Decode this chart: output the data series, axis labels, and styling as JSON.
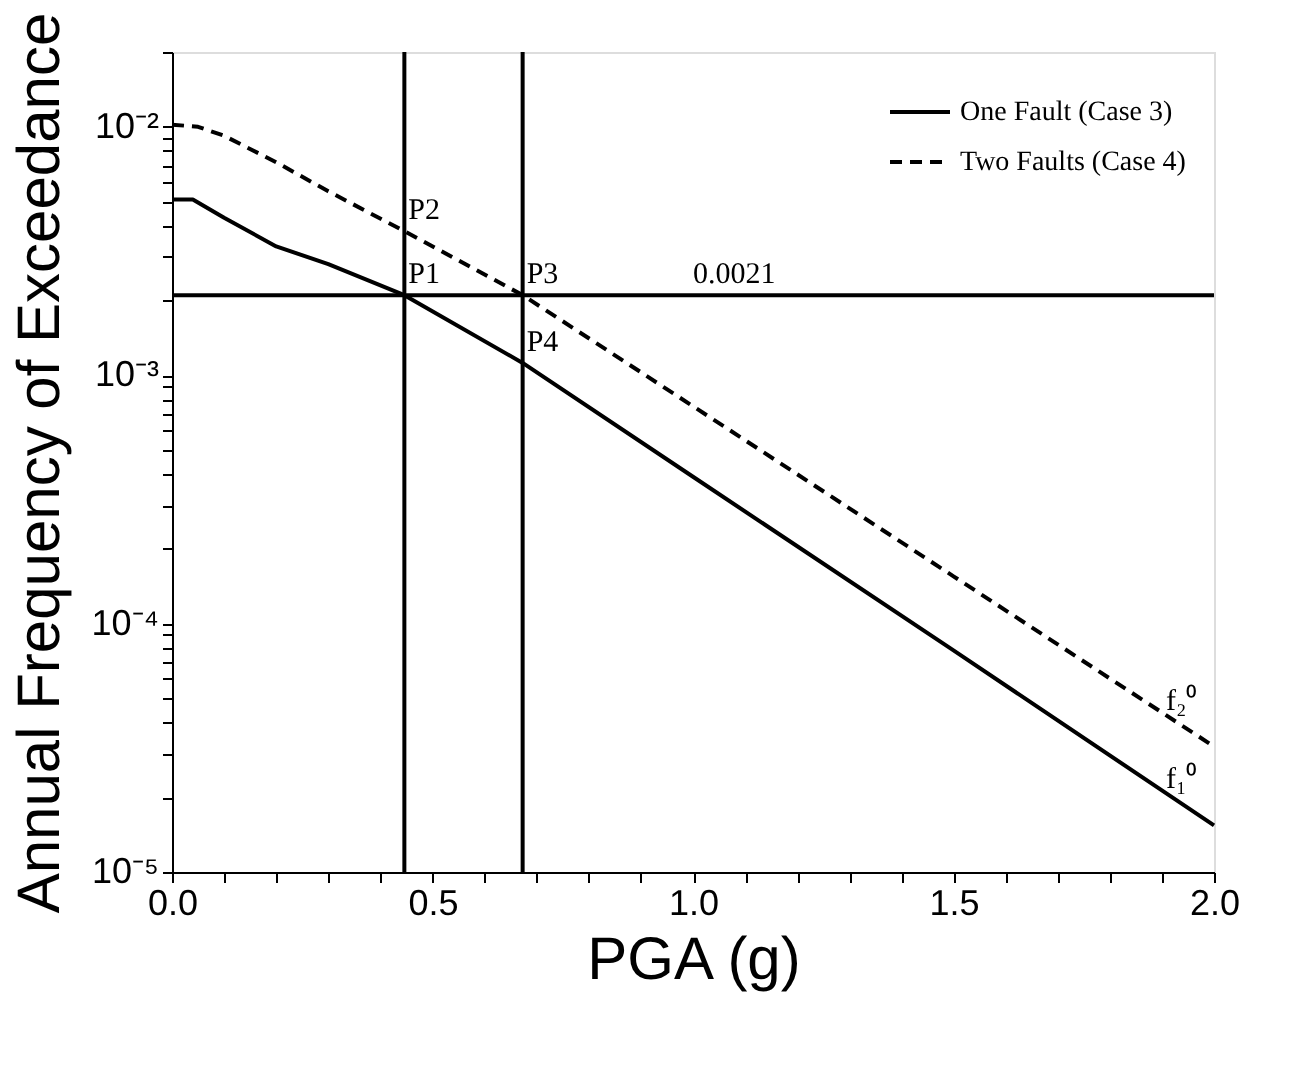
{
  "chart_data": {
    "type": "line",
    "xlabel": "PGA (g)",
    "ylabel": "Annual Frequency of Exceedance",
    "log": "y",
    "grid": false,
    "legend": "top right",
    "marker": "none",
    "xlim": [
      0,
      2
    ],
    "ylim": [
      1e-05,
      0.02
    ],
    "xticks": [
      {
        "value": 0,
        "label": "0.0"
      },
      {
        "value": 0.1,
        "label": null
      },
      {
        "value": 0.2,
        "label": null
      },
      {
        "value": 0.3,
        "label": null
      },
      {
        "value": 0.4,
        "label": null
      },
      {
        "value": 0.5,
        "label": "0.5"
      },
      {
        "value": 0.6,
        "label": null
      },
      {
        "value": 0.7,
        "label": null
      },
      {
        "value": 0.8,
        "label": null
      },
      {
        "value": 0.9,
        "label": null
      },
      {
        "value": 1,
        "label": "1.0"
      },
      {
        "value": 1.1,
        "label": null
      },
      {
        "value": 1.2,
        "label": null
      },
      {
        "value": 1.3,
        "label": null
      },
      {
        "value": 1.4,
        "label": null
      },
      {
        "value": 1.5,
        "label": "1.5"
      },
      {
        "value": 1.6,
        "label": null
      },
      {
        "value": 1.7,
        "label": null
      },
      {
        "value": 1.8,
        "label": null
      },
      {
        "value": 1.9,
        "label": null
      },
      {
        "value": 2,
        "label": "2.0"
      }
    ],
    "yticks": [
      {
        "value": 1e-05,
        "label": "10⁻⁵"
      },
      {
        "value": 2e-05,
        "label": null
      },
      {
        "value": 3e-05,
        "label": null
      },
      {
        "value": 4e-05,
        "label": null
      },
      {
        "value": 5e-05,
        "label": null
      },
      {
        "value": 6e-05,
        "label": null
      },
      {
        "value": 7e-05,
        "label": null
      },
      {
        "value": 8e-05,
        "label": null
      },
      {
        "value": 9e-05,
        "label": null
      },
      {
        "value": 0.0001,
        "label": "10⁻⁴"
      },
      {
        "value": 0.0002,
        "label": null
      },
      {
        "value": 0.0003,
        "label": null
      },
      {
        "value": 0.0004,
        "label": null
      },
      {
        "value": 0.0005,
        "label": null
      },
      {
        "value": 0.0006,
        "label": null
      },
      {
        "value": 0.0007,
        "label": null
      },
      {
        "value": 0.0008,
        "label": null
      },
      {
        "value": 0.0009,
        "label": null
      },
      {
        "value": 0.001,
        "label": "10⁻³"
      },
      {
        "value": 0.002,
        "label": null
      },
      {
        "value": 0.003,
        "label": null
      },
      {
        "value": 0.004,
        "label": null
      },
      {
        "value": 0.005,
        "label": null
      },
      {
        "value": 0.006,
        "label": null
      },
      {
        "value": 0.007,
        "label": null
      },
      {
        "value": 0.008,
        "label": null
      },
      {
        "value": 0.009,
        "label": null
      },
      {
        "value": 0.01,
        "label": "10⁻²"
      },
      {
        "value": 0.02,
        "label": null
      }
    ],
    "series": [
      {
        "name": "One Fault (Case 3)",
        "color": "#000000",
        "line_style": "solid",
        "x": [
          0,
          0.04,
          0.1,
          0.2,
          0.3,
          0.446,
          0.673,
          1.0,
          1.5,
          2.0
        ],
        "values": [
          0.0051,
          0.0051,
          0.0043,
          0.0033,
          0.0028,
          0.0021,
          0.00112,
          0.00039,
          7.8e-05,
          1.54e-05
        ]
      },
      {
        "name": "Two Faults (Case 4)",
        "color": "#000000",
        "line_style": "dashed",
        "x": [
          0,
          0.05,
          0.1,
          0.2,
          0.3,
          0.446,
          0.673,
          1.0,
          1.5,
          2.0
        ],
        "values": [
          0.0102,
          0.01,
          0.0092,
          0.0072,
          0.0055,
          0.0038,
          0.0021,
          0.00075,
          0.000155,
          3.2e-05
        ]
      }
    ],
    "ref_lines": [
      {
        "axis": "x",
        "value": 0.446,
        "label": null,
        "color": "#000000"
      },
      {
        "axis": "x",
        "value": 0.673,
        "label": null,
        "color": "#000000"
      },
      {
        "axis": "y",
        "value": 0.0021,
        "label": "0.0021",
        "color": "#000000"
      }
    ],
    "annotations": [
      {
        "text": "P1",
        "x": 0.446,
        "y": 0.0021
      },
      {
        "text": "P2",
        "x": 0.446,
        "y": 0.0038
      },
      {
        "text": "P3",
        "x": 0.673,
        "y": 0.0021
      },
      {
        "text": "P4",
        "x": 0.673,
        "y": 0.00112
      },
      {
        "text": "f₂⁰",
        "x": 1.9,
        "y": 4e-05
      },
      {
        "text": "f₁⁰",
        "x": 1.9,
        "y": 1.95e-05
      }
    ]
  }
}
